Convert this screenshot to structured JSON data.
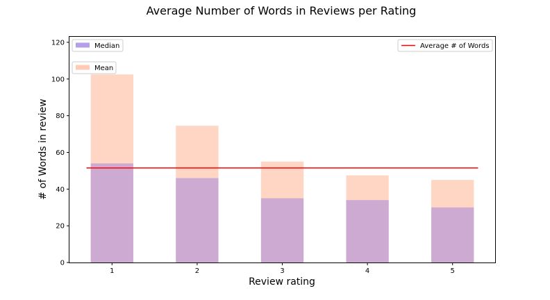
{
  "chart_data": {
    "type": "bar",
    "title": "Average Number of Words in Reviews per Rating",
    "xlabel": "Review rating",
    "ylabel": "# of Words in review",
    "categories": [
      "1",
      "2",
      "3",
      "4",
      "5"
    ],
    "ylim": [
      0,
      123
    ],
    "yticks": [
      0,
      20,
      40,
      60,
      80,
      100,
      120
    ],
    "series": [
      {
        "name": "Mean",
        "values": [
          102.5,
          74.5,
          55,
          47.5,
          45
        ],
        "color": "#ffcbb5",
        "opacity": 0.8
      },
      {
        "name": "Median",
        "values": [
          54,
          46,
          35,
          34,
          30
        ],
        "color": "#9b7fe0",
        "opacity": 0.5
      }
    ],
    "reference_line": {
      "name": "Average # of Words",
      "value": 51.5,
      "color": "#ff0000"
    },
    "legend": {
      "median": "Median",
      "mean": "Mean",
      "average": "Average # of Words"
    }
  }
}
